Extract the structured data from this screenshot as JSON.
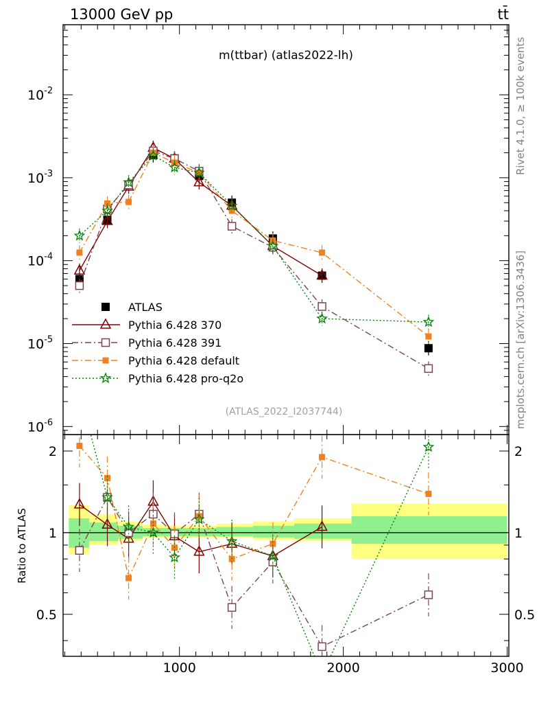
{
  "header": {
    "left": "13000 GeV pp",
    "right": "tt̄"
  },
  "side_labels": {
    "rivet": "Rivet 4.1.0, ≥ 100k events",
    "mcplots": "mcplots.cern.ch [arXiv:1306.3436]"
  },
  "chart_data": {
    "type": "scatter",
    "title": "m(ttbar) (atlas2022-lh)",
    "reference": "(ATLAS_2022_I2037744)",
    "xlabel": "",
    "ylabel": "",
    "ratio_ylabel": "Ratio to ATLAS",
    "xlim": [
      290,
      3010
    ],
    "ylim": [
      8e-07,
      0.07
    ],
    "ratio_ylim": [
      0.35,
      2.3
    ],
    "x_ticks": [
      1000,
      2000,
      3000
    ],
    "x_tick_labels": [
      "1000",
      "2000",
      "3000"
    ],
    "y_ticks": [
      0.01,
      0.001,
      0.0001,
      1e-05,
      1e-06
    ],
    "y_tick_labels": [
      "10^-2",
      "10^-3",
      "10^-4",
      "10^-5",
      "10^-6"
    ],
    "ratio_ticks": [
      0.5,
      1,
      2
    ],
    "ratio_tick_labels": [
      "0.5",
      "1",
      "2"
    ],
    "bin_edges": [
      325,
      450,
      625,
      775,
      900,
      1050,
      1225,
      1450,
      1700,
      2050,
      3000
    ],
    "x": [
      390,
      560,
      690,
      840,
      970,
      1120,
      1320,
      1570,
      1870,
      2520
    ],
    "band_inner": [
      [
        0.88,
        1.13
      ],
      [
        0.93,
        1.09
      ],
      [
        0.95,
        1.06
      ],
      [
        0.97,
        1.04
      ],
      [
        0.97,
        1.04
      ],
      [
        0.97,
        1.04
      ],
      [
        0.97,
        1.05
      ],
      [
        0.96,
        1.06
      ],
      [
        0.95,
        1.08
      ],
      [
        0.91,
        1.15
      ]
    ],
    "band_outer": [
      [
        0.83,
        1.26
      ],
      [
        0.9,
        1.17
      ],
      [
        0.93,
        1.1
      ],
      [
        0.96,
        1.07
      ],
      [
        0.96,
        1.06
      ],
      [
        0.96,
        1.06
      ],
      [
        0.96,
        1.08
      ],
      [
        0.94,
        1.1
      ],
      [
        0.93,
        1.13
      ],
      [
        0.8,
        1.28
      ]
    ],
    "series": [
      {
        "name": "ATLAS",
        "color": "#000000",
        "marker": "square-filled",
        "dash": "none",
        "values": [
          6e-05,
          0.00031,
          0.00082,
          0.00187,
          0.00171,
          0.00105,
          0.0005,
          0.000185,
          6.6e-05,
          8.8e-06
        ],
        "ratio": [
          1,
          1,
          1,
          1,
          1,
          1,
          1,
          1,
          1,
          1
        ]
      },
      {
        "name": "Pythia 6.428 370",
        "color": "#800000",
        "marker": "triangle-open",
        "dash": "none",
        "values": [
          7.6e-05,
          0.0003,
          0.00078,
          0.0023,
          0.0017,
          0.00088,
          0.00046,
          0.00015,
          6.6e-05,
          null
        ],
        "ratio": [
          1.27,
          1.07,
          0.95,
          1.3,
          0.97,
          0.85,
          0.91,
          0.82,
          1.05,
          null
        ]
      },
      {
        "name": "Pythia 6.428 391",
        "color": "#7a4454",
        "marker": "square-open",
        "dash": "dashdot",
        "values": [
          5e-05,
          0.00042,
          0.00082,
          0.0021,
          0.0017,
          0.0012,
          0.00026,
          0.000145,
          2.8e-05,
          5e-06
        ],
        "ratio": [
          0.86,
          1.35,
          1.0,
          1.17,
          0.99,
          1.17,
          0.53,
          0.78,
          0.38,
          0.59
        ]
      },
      {
        "name": "Pythia 6.428 default",
        "color": "#f08020",
        "marker": "square-filled-small",
        "dash": "dashdot",
        "values": [
          0.000125,
          0.00049,
          0.00051,
          0.002,
          0.00152,
          0.00115,
          0.0004,
          0.000175,
          0.000125,
          1.22e-05
        ],
        "ratio": [
          2.09,
          1.59,
          0.68,
          1.08,
          0.88,
          1.15,
          0.8,
          0.91,
          1.9,
          1.39
        ]
      },
      {
        "name": "Pythia 6.428 pro-q2o",
        "color": "#008000",
        "marker": "star-open",
        "dash": "dotted",
        "values": [
          0.0002,
          0.0004,
          0.00088,
          0.00185,
          0.00133,
          0.00115,
          0.00046,
          0.00015,
          2e-05,
          1.82e-05
        ],
        "ratio": [
          3.3,
          1.35,
          1.05,
          1.0,
          0.81,
          1.12,
          0.93,
          0.82,
          0.3,
          2.07
        ]
      }
    ]
  }
}
